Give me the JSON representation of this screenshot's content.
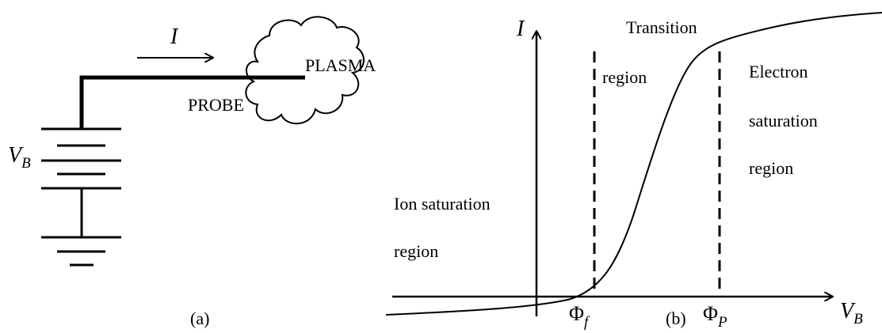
{
  "panel_a": {
    "current_label": "I",
    "plasma_label": "PLASMA",
    "probe_label": "PROBE",
    "voltage_label": {
      "main": "V",
      "sub": "B"
    },
    "caption": "(a)"
  },
  "panel_b": {
    "y_axis_label": "I",
    "x_axis_label": {
      "main": "V",
      "sub": "B"
    },
    "transition_label": [
      "Transition",
      "region"
    ],
    "electron_label": [
      "Electron",
      "saturation",
      "region"
    ],
    "ion_label": [
      "Ion saturation",
      "region"
    ],
    "floating_potential": {
      "main": "Φ",
      "sub": "f"
    },
    "plasma_potential": {
      "main": "Φ",
      "sub": "P"
    },
    "caption": "(b)"
  }
}
